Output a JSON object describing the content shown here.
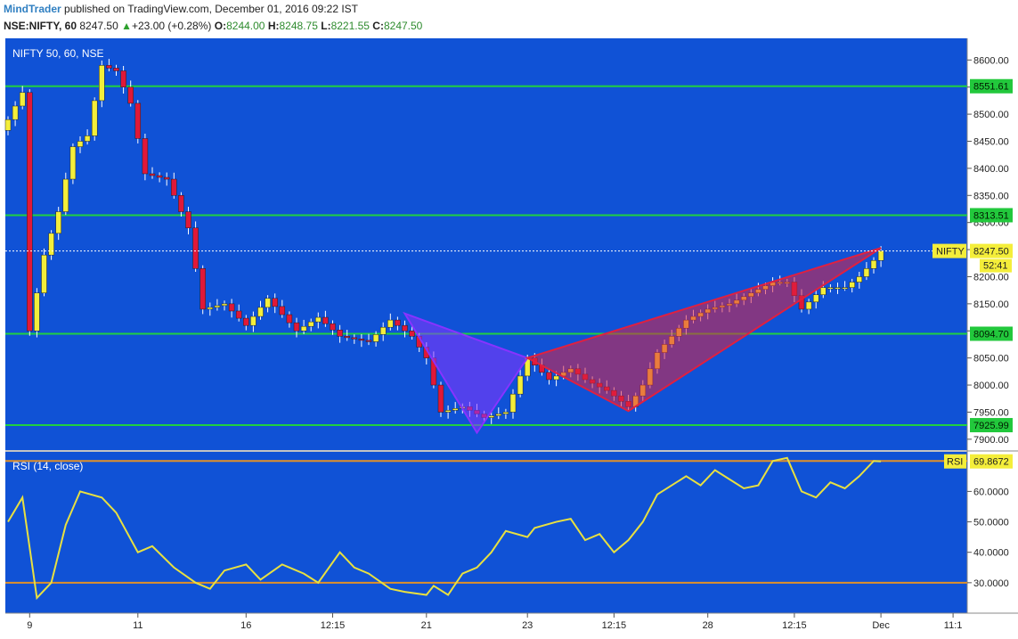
{
  "header": {
    "publisher": "MindTrader",
    "published_text": "published on TradingView.com, December 01, 2016 09:22 IST",
    "symbol": "NSE:NIFTY, 60",
    "last": "8247.50",
    "change_arrow": "▲",
    "change": "+23.00 (+0.28%)",
    "o_label": "O:",
    "o": "8244.00",
    "h_label": "H:",
    "h": "8248.75",
    "l_label": "L:",
    "l": "8221.55",
    "c_label": "C:",
    "c": "8247.50"
  },
  "chart_data": [
    {
      "type": "candlestick",
      "title": "NIFTY 50, 60, NSE",
      "ylim": [
        7880,
        8640
      ],
      "yticks": [
        7900,
        7950,
        8000,
        8050,
        8100,
        8150,
        8200,
        8250,
        8300,
        8350,
        8400,
        8450,
        8500,
        8550,
        8600
      ],
      "ytick_labels": [
        "7900.00",
        "7950.00",
        "8000.00",
        "8050.00",
        "8100.00",
        "8150.00",
        "8200.00",
        "8250.00",
        "8300.00",
        "8350.00",
        "8400.00",
        "8450.00",
        "8500.00",
        "8550.00",
        "8600.00"
      ],
      "x_labels": [
        "9",
        "11",
        "16",
        "12:15",
        "21",
        "23",
        "12:15",
        "28",
        "12:15",
        "Dec",
        "11:1"
      ],
      "x_label_index": [
        3,
        18,
        33,
        45,
        58,
        72,
        84,
        97,
        109,
        121,
        131
      ],
      "candle_count": 122,
      "levels": [
        {
          "label": "8551.61",
          "value": 8551.61
        },
        {
          "label": "8313.51",
          "value": 8313.51
        },
        {
          "label": "8094.70",
          "value": 8094.7
        },
        {
          "label": "7925.99",
          "value": 7925.99
        }
      ],
      "last_price": {
        "name": "NIFTY",
        "label": "8247.50",
        "value": 8247.5,
        "countdown": "52:41"
      },
      "key_points": [
        [
          0,
          8490
        ],
        [
          2,
          8540
        ],
        [
          3,
          8100
        ],
        [
          5,
          8240
        ],
        [
          7,
          8320
        ],
        [
          9,
          8440
        ],
        [
          11,
          8460
        ],
        [
          13,
          8590
        ],
        [
          15,
          8580
        ],
        [
          17,
          8520
        ],
        [
          19,
          8390
        ],
        [
          22,
          8380
        ],
        [
          25,
          8290
        ],
        [
          27,
          8140
        ],
        [
          30,
          8150
        ],
        [
          33,
          8110
        ],
        [
          36,
          8160
        ],
        [
          40,
          8100
        ],
        [
          43,
          8125
        ],
        [
          46,
          8090
        ],
        [
          50,
          8080
        ],
        [
          53,
          8120
        ],
        [
          56,
          8090
        ],
        [
          58,
          8050
        ],
        [
          60,
          7950
        ],
        [
          63,
          7960
        ],
        [
          66,
          7940
        ],
        [
          69,
          7950
        ],
        [
          72,
          8050
        ],
        [
          75,
          8010
        ],
        [
          78,
          8030
        ],
        [
          80,
          8010
        ],
        [
          83,
          7990
        ],
        [
          86,
          7960
        ],
        [
          88,
          8000
        ],
        [
          90,
          8060
        ],
        [
          94,
          8120
        ],
        [
          97,
          8140
        ],
        [
          100,
          8150
        ],
        [
          103,
          8170
        ],
        [
          106,
          8190
        ],
        [
          108,
          8190
        ],
        [
          110,
          8140
        ],
        [
          113,
          8180
        ],
        [
          116,
          8180
        ],
        [
          118,
          8200
        ],
        [
          120,
          8230
        ],
        [
          121,
          8247.5
        ]
      ],
      "patterns": [
        {
          "color": "#8833ff",
          "points": [
            [
              55,
              8132
            ],
            [
              65,
              7912
            ],
            [
              72,
              8050
            ]
          ]
        },
        {
          "color": "#e02040",
          "points": [
            [
              72,
              8050
            ],
            [
              86,
              7952
            ],
            [
              121,
              8253
            ]
          ]
        }
      ]
    },
    {
      "type": "line",
      "title": "RSI (14, close)",
      "ylim": [
        20,
        73
      ],
      "yticks": [
        30,
        40,
        50,
        60
      ],
      "ytick_labels": [
        "30.0000",
        "40.0000",
        "50.0000",
        "60.0000"
      ],
      "levels": [
        30,
        70
      ],
      "last_label": "RSI",
      "last_value_text": "69.8672",
      "last_value": 69.8672,
      "x": [
        0,
        2,
        4,
        6,
        8,
        10,
        13,
        15,
        18,
        20,
        23,
        26,
        28,
        30,
        33,
        35,
        38,
        41,
        43,
        46,
        48,
        50,
        53,
        55,
        58,
        59,
        61,
        63,
        65,
        67,
        69,
        72,
        73,
        76,
        78,
        80,
        82,
        84,
        86,
        88,
        90,
        92,
        94,
        96,
        98,
        100,
        102,
        104,
        106,
        108,
        110,
        112,
        114,
        116,
        118,
        120,
        121
      ],
      "y": [
        50,
        58,
        25,
        30,
        49,
        60,
        58,
        53,
        40,
        42,
        35,
        30,
        28,
        34,
        36,
        31,
        36,
        33,
        30,
        40,
        35,
        33,
        28,
        27,
        26,
        29,
        26,
        33,
        35,
        40,
        47,
        45,
        48,
        50,
        51,
        44,
        46,
        40,
        44,
        50,
        59,
        62,
        65,
        62,
        67,
        64,
        61,
        62,
        70,
        71,
        60,
        58,
        63,
        61,
        65,
        70,
        69.8672
      ]
    }
  ]
}
